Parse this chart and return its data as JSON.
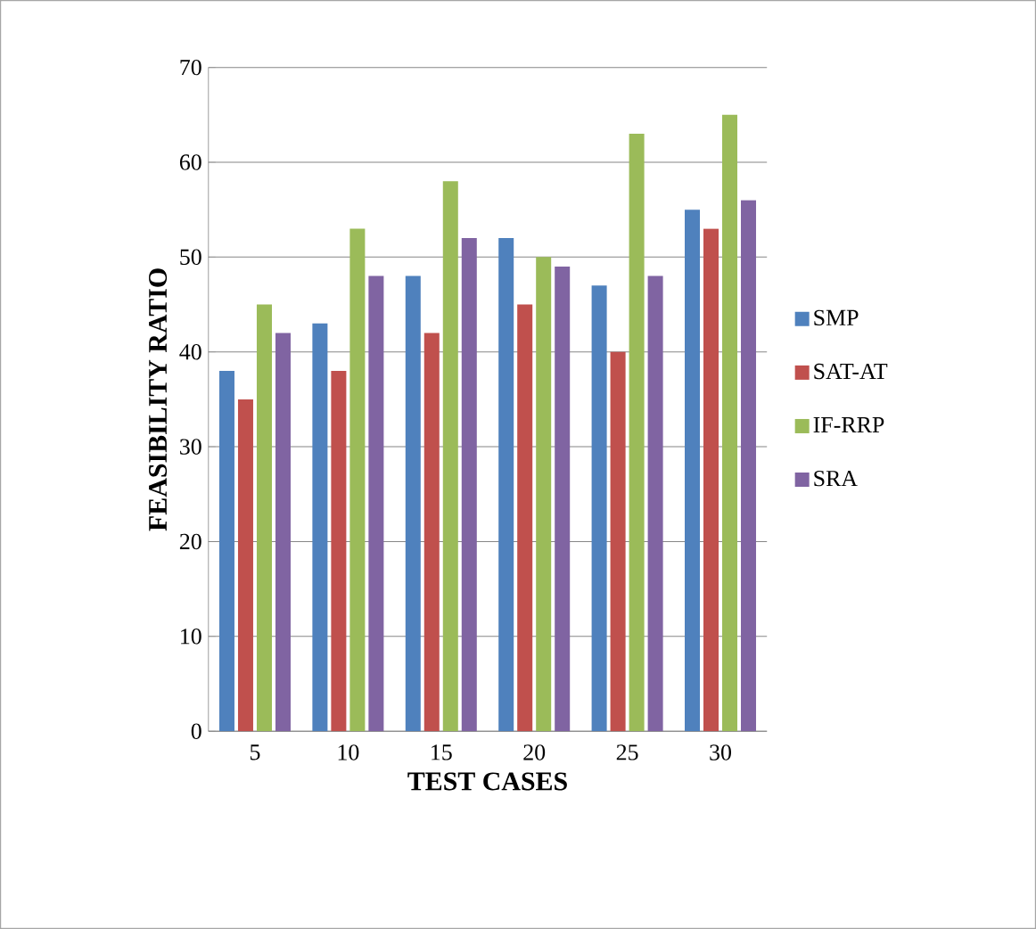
{
  "chart_data": {
    "type": "bar",
    "xlabel": "TEST CASES",
    "ylabel": "FEASIBILITY RATIO",
    "categories": [
      "5",
      "10",
      "15",
      "20",
      "25",
      "30"
    ],
    "series": [
      {
        "name": "SMP",
        "color": "#4f81bd",
        "values": [
          38,
          43,
          48,
          52,
          47,
          55
        ]
      },
      {
        "name": "SAT-AT",
        "color": "#c0504d",
        "values": [
          35,
          38,
          42,
          45,
          40,
          53
        ]
      },
      {
        "name": "IF-RRP",
        "color": "#9bbb59",
        "values": [
          45,
          53,
          58,
          50,
          63,
          65
        ]
      },
      {
        "name": "SRA",
        "color": "#8064a2",
        "values": [
          42,
          48,
          52,
          49,
          48,
          56
        ]
      }
    ],
    "ylim": [
      0,
      70
    ],
    "yticks": [
      0,
      10,
      20,
      30,
      40,
      50,
      60,
      70
    ],
    "grid": "y",
    "legend": "right"
  }
}
